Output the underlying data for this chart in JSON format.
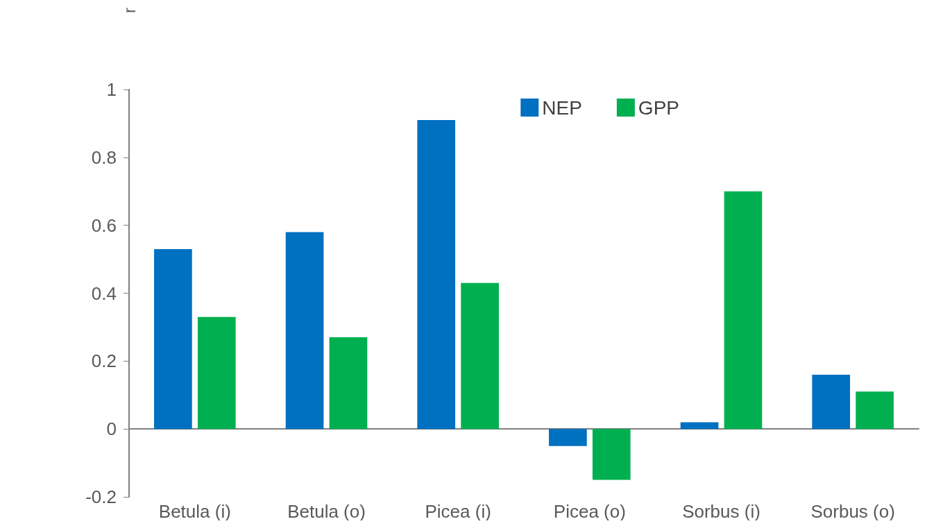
{
  "chart_data": {
    "type": "bar",
    "ylabel": "r",
    "categories": [
      "Betula (i)",
      "Betula (o)",
      "Picea (i)",
      "Picea (o)",
      "Sorbus (i)",
      "Sorbus (o)"
    ],
    "series": [
      {
        "name": "NEP",
        "color": "#0070c0",
        "values": [
          0.53,
          0.58,
          0.91,
          -0.05,
          0.02,
          0.16
        ]
      },
      {
        "name": "GPP",
        "color": "#00b050",
        "values": [
          0.33,
          0.27,
          0.43,
          -0.15,
          0.7,
          0.11
        ]
      }
    ],
    "ylim": [
      -0.2,
      1
    ],
    "yticks": [
      -0.2,
      0,
      0.2,
      0.4,
      0.6,
      0.8,
      1
    ],
    "legend": "top right"
  }
}
